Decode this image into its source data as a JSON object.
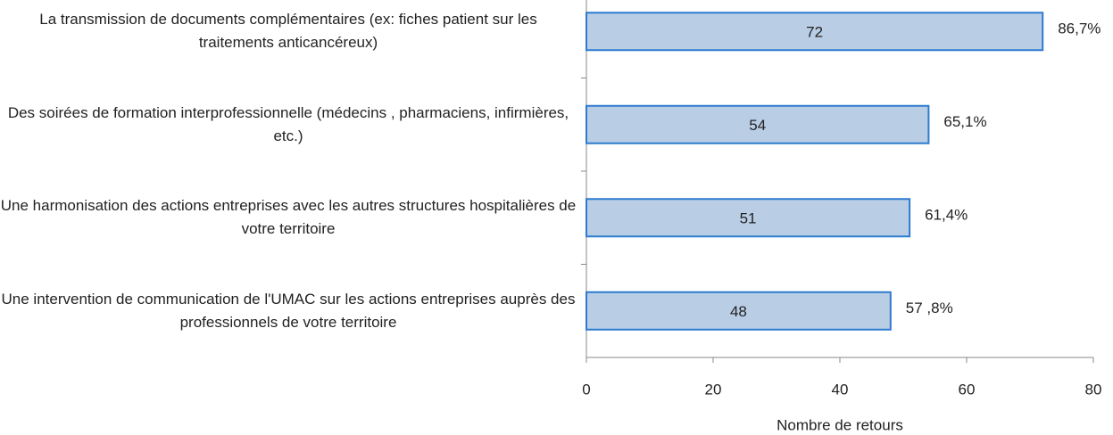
{
  "chart_data": {
    "type": "bar",
    "orientation": "horizontal",
    "categories": [
      "La transmission de documents complémentaires (ex: fiches patient sur les traitements anticancéreux)",
      "Des soirées de formation interprofessionnelle (médecins , pharmaciens, infirmières, etc.)",
      "Une harmonisation des actions entreprises avec les autres structures hospitalières de votre territoire",
      "Une intervention de communication de l'UMAC sur les actions entreprises auprès des professionnels de votre territoire"
    ],
    "values": [
      72,
      54,
      51,
      48
    ],
    "annotations": [
      "86,7%",
      "65,1%",
      "61,4%",
      "57 ,8%"
    ],
    "color": "#b9cde5",
    "edge_color": "#2e7bcf",
    "xlim": [
      0,
      80
    ],
    "xticks": [
      0,
      20,
      40,
      60,
      80
    ],
    "xlabel": "Nombre de retours"
  }
}
